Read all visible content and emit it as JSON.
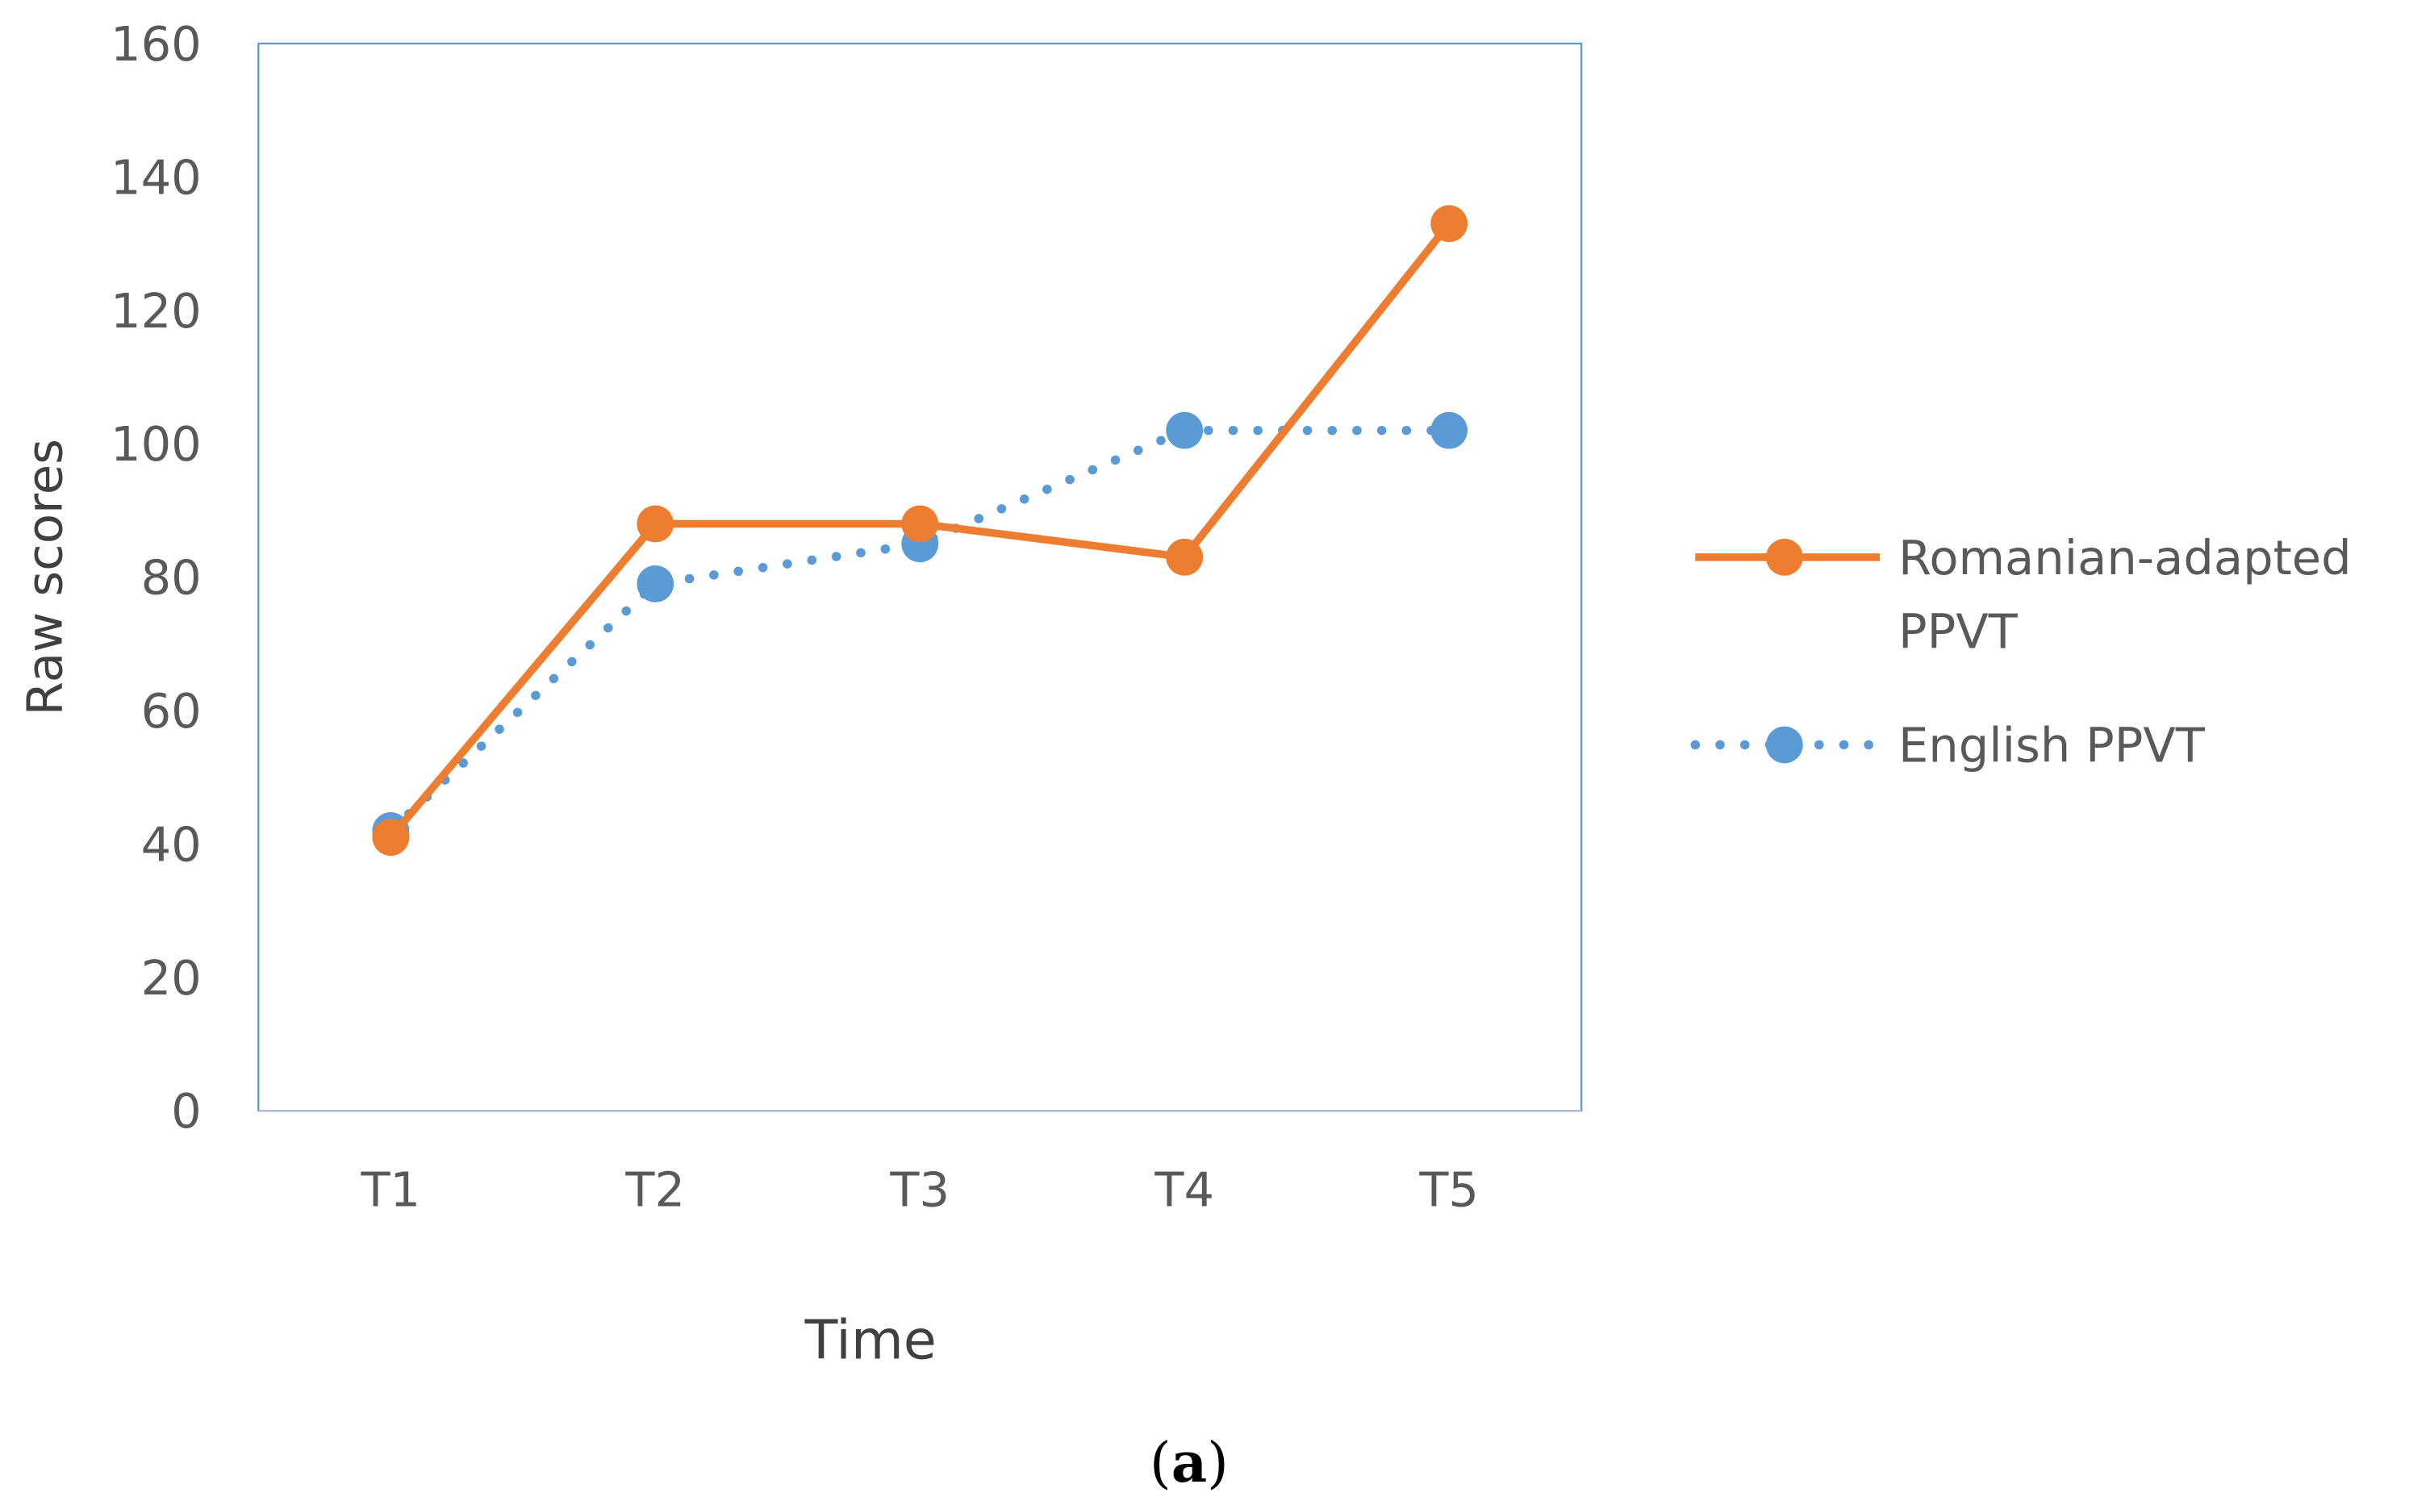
{
  "chart_data": {
    "type": "line",
    "categories": [
      "T1",
      "T2",
      "T3",
      "T4",
      "T5"
    ],
    "series": [
      {
        "name": "Romanian-adapted PPVT",
        "values": [
          41,
          88,
          88,
          83,
          133
        ],
        "color": "#ED7D31",
        "style": "solid",
        "marker": "circle"
      },
      {
        "name": "English PPVT",
        "values": [
          42,
          79,
          85,
          102,
          102
        ],
        "color": "#5B9BD5",
        "style": "dotted",
        "marker": "circle"
      }
    ],
    "legend_lines": [
      [
        "Romanian-adapted",
        "PPVT"
      ],
      [
        "English PPVT"
      ]
    ],
    "xlabel": "Time",
    "ylabel": "Raw scores",
    "ylim": [
      0,
      160
    ],
    "yticks": [
      0,
      20,
      40,
      60,
      80,
      100,
      120,
      140,
      160
    ],
    "grid": false,
    "legend_position": "right",
    "plot_border_color": "#5B9BD5"
  },
  "caption": {
    "paren_open": "(",
    "letter": "a",
    "paren_close": ")"
  }
}
